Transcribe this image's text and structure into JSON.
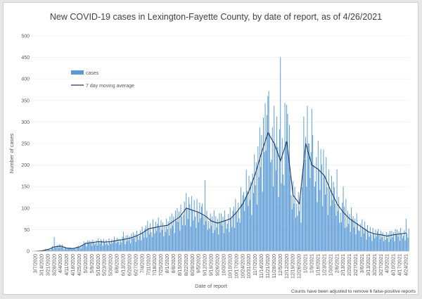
{
  "chart_data": {
    "type": "bar",
    "title": "New COVID-19 cases in Lexington-Fayette County, by date of report, as of 4/26/2021",
    "xlabel": "Date of report",
    "ylabel": "Number of cases",
    "ylim": [
      0,
      500
    ],
    "yticks": [
      0,
      50,
      100,
      150,
      200,
      250,
      300,
      350,
      400,
      450,
      500
    ],
    "legend_placement": "top-left",
    "note": "Counts have been adjusted to remove 6 false-positive reports",
    "x_tick_labels": [
      "3/7/2020",
      "3/14/2020",
      "3/21/2020",
      "3/28/2020",
      "4/4/2020",
      "4/11/2020",
      "4/18/2020",
      "4/25/2020",
      "5/2/2020",
      "5/9/2020",
      "5/16/2020",
      "5/23/2020",
      "5/30/2020",
      "6/6/2020",
      "6/13/2020",
      "6/20/2020",
      "6/27/2020",
      "7/4/2020",
      "7/11/2020",
      "7/18/2020",
      "7/25/2020",
      "8/1/2020",
      "8/8/2020",
      "8/15/2020",
      "8/22/2020",
      "8/29/2020",
      "9/5/2020",
      "9/12/2020",
      "9/19/2020",
      "9/26/2020",
      "10/3/2020",
      "10/10/2020",
      "10/17/2020",
      "10/24/2020",
      "10/31/2020",
      "11/7/2020",
      "11/14/2020",
      "11/21/2020",
      "11/28/2020",
      "12/5/2020",
      "12/12/2020",
      "12/19/2020",
      "12/26/2020",
      "1/2/2021",
      "1/9/2021",
      "1/16/2021",
      "1/23/2021",
      "1/30/2021",
      "2/6/2021",
      "2/13/2021",
      "2/20/2021",
      "2/27/2021",
      "3/6/2021",
      "3/13/2021",
      "3/20/2021",
      "3/27/2021",
      "4/3/2021",
      "4/10/2021",
      "4/17/2021",
      "4/24/2021"
    ],
    "series": [
      {
        "name": "cases",
        "color": "#5b9bd5",
        "kind": "bar",
        "weekly_levels": [
          0,
          1,
          4,
          10,
          12,
          7,
          6,
          10,
          18,
          20,
          22,
          21,
          22,
          25,
          27,
          30,
          35,
          42,
          52,
          55,
          58,
          60,
          70,
          80,
          100,
          95,
          90,
          82,
          70,
          65,
          70,
          75,
          90,
          110,
          140,
          180,
          230,
          275,
          250,
          210,
          255,
          130,
          110,
          250,
          200,
          190,
          175,
          140,
          110,
          90,
          75,
          65,
          55,
          45,
          40,
          38,
          35,
          38,
          40,
          42
        ],
        "spikes": [
          {
            "week": 3,
            "value": 33
          },
          {
            "week": 14,
            "value": 45
          },
          {
            "week": 27,
            "value": 165
          },
          {
            "week": 33,
            "value": 130
          },
          {
            "week": 36,
            "value": 270
          },
          {
            "week": 37,
            "value": 360
          },
          {
            "week": 39,
            "value": 450
          },
          {
            "week": 40,
            "value": 340
          },
          {
            "week": 43,
            "value": 265
          },
          {
            "week": 44,
            "value": 330
          },
          {
            "week": 48,
            "value": 190
          },
          {
            "week": 49,
            "value": 150
          },
          {
            "week": 59,
            "value": 75
          }
        ]
      },
      {
        "name": "7 day moving average",
        "color": "#1f3864",
        "kind": "line",
        "weekly_levels": [
          0,
          1,
          4,
          10,
          12,
          7,
          6,
          10,
          18,
          20,
          22,
          21,
          22,
          25,
          27,
          30,
          35,
          42,
          52,
          55,
          58,
          60,
          70,
          80,
          100,
          95,
          90,
          82,
          70,
          65,
          70,
          75,
          90,
          110,
          140,
          180,
          230,
          275,
          250,
          210,
          255,
          130,
          110,
          250,
          200,
          190,
          175,
          140,
          110,
          90,
          75,
          65,
          55,
          45,
          40,
          38,
          35,
          38,
          40,
          42
        ]
      }
    ]
  }
}
